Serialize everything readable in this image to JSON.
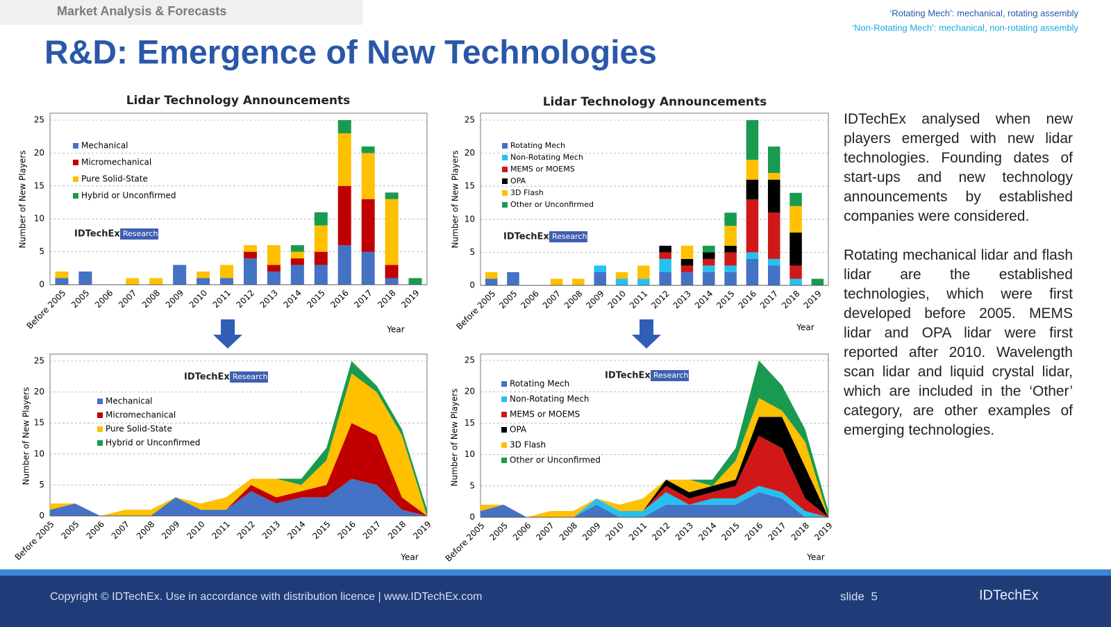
{
  "header": {
    "section": "Market Analysis & Forecasts",
    "title": "R&D: Emergence of New Technologies",
    "notes": [
      "‘Rotating Mech’: mechanical, rotating assembly",
      "‘Non-Rotating Mech’: mechanical, non-rotating assembly"
    ]
  },
  "chart_data": [
    {
      "type": "bar",
      "title": "Lidar Technology Announcements",
      "y_label": "Number of New Players",
      "x_label": "Year",
      "badge": {
        "brand": "IDTechEx",
        "tag": "Research"
      },
      "categories": [
        "Before 2005",
        "2005",
        "2006",
        "2007",
        "2008",
        "2009",
        "2010",
        "2011",
        "2012",
        "2013",
        "2014",
        "2015",
        "2016",
        "2017",
        "2018",
        "2019"
      ],
      "series": [
        {
          "name": "Mechanical",
          "color": "#4472c4",
          "values": [
            1,
            2,
            0,
            0,
            0,
            3,
            1,
            1,
            4,
            2,
            3,
            3,
            6,
            5,
            1,
            0
          ]
        },
        {
          "name": "Micromechanical",
          "color": "#c00000",
          "values": [
            0,
            0,
            0,
            0,
            0,
            0,
            0,
            0,
            1,
            1,
            1,
            2,
            9,
            8,
            2,
            0
          ]
        },
        {
          "name": "Pure Solid-State",
          "color": "#ffc000",
          "values": [
            1,
            0,
            0,
            1,
            1,
            0,
            1,
            2,
            1,
            3,
            1,
            4,
            8,
            7,
            10,
            0
          ]
        },
        {
          "name": "Hybrid or Unconfirmed",
          "color": "#1a9a50",
          "values": [
            0,
            0,
            0,
            0,
            0,
            0,
            0,
            0,
            0,
            0,
            1,
            2,
            2,
            1,
            1,
            1
          ]
        }
      ],
      "ylim": [
        0,
        25
      ],
      "yticks": [
        0,
        5,
        10,
        15,
        20,
        25
      ],
      "grid": true
    },
    {
      "type": "bar",
      "title": "Lidar Technology Announcements",
      "y_label": "Number of New Players",
      "x_label": "Year",
      "badge": {
        "brand": "IDTechEx",
        "tag": "Research"
      },
      "categories": [
        "Before 2005",
        "2005",
        "2006",
        "2007",
        "2008",
        "2009",
        "2010",
        "2011",
        "2012",
        "2013",
        "2014",
        "2015",
        "2016",
        "2017",
        "2018",
        "2019"
      ],
      "series": [
        {
          "name": "Rotating Mech",
          "color": "#4472c4",
          "values": [
            1,
            2,
            0,
            0,
            0,
            2,
            0,
            0,
            2,
            2,
            2,
            2,
            4,
            3,
            0,
            0
          ]
        },
        {
          "name": "Non-Rotating Mech",
          "color": "#26c0f0",
          "values": [
            0,
            0,
            0,
            0,
            0,
            1,
            1,
            1,
            2,
            0,
            1,
            1,
            1,
            1,
            1,
            0
          ]
        },
        {
          "name": "MEMS or MOEMS",
          "color": "#d01818",
          "values": [
            0,
            0,
            0,
            0,
            0,
            0,
            0,
            0,
            1,
            1,
            1,
            2,
            8,
            7,
            2,
            0
          ]
        },
        {
          "name": "OPA",
          "color": "#000000",
          "values": [
            0,
            0,
            0,
            0,
            0,
            0,
            0,
            0,
            1,
            1,
            1,
            1,
            3,
            5,
            5,
            0
          ]
        },
        {
          "name": "3D Flash",
          "color": "#ffc000",
          "values": [
            1,
            0,
            0,
            1,
            1,
            0,
            1,
            2,
            0,
            2,
            0,
            3,
            3,
            1,
            4,
            0
          ]
        },
        {
          "name": "Other or Unconfirmed",
          "color": "#1a9a50",
          "values": [
            0,
            0,
            0,
            0,
            0,
            0,
            0,
            0,
            0,
            0,
            1,
            2,
            6,
            4,
            2,
            1
          ]
        }
      ],
      "ylim": [
        0,
        25
      ],
      "yticks": [
        0,
        5,
        10,
        15,
        20,
        25
      ],
      "grid": true
    },
    {
      "type": "area",
      "y_label": "Number of New Players",
      "x_label": "Year",
      "badge": {
        "brand": "IDTechEx",
        "tag": "Research"
      },
      "categories": [
        "Before 2005",
        "2005",
        "2006",
        "2007",
        "2008",
        "2009",
        "2010",
        "2011",
        "2012",
        "2013",
        "2014",
        "2015",
        "2016",
        "2017",
        "2018",
        "2019"
      ],
      "series": [
        {
          "name": "Mechanical",
          "color": "#4472c4",
          "values": [
            1,
            2,
            0,
            0,
            0,
            3,
            1,
            1,
            4,
            2,
            3,
            3,
            6,
            5,
            1,
            0
          ]
        },
        {
          "name": "Micromechanical",
          "color": "#c00000",
          "values": [
            0,
            0,
            0,
            0,
            0,
            0,
            0,
            0,
            1,
            1,
            1,
            2,
            9,
            8,
            2,
            0
          ]
        },
        {
          "name": "Pure Solid-State",
          "color": "#ffc000",
          "values": [
            1,
            0,
            0,
            1,
            1,
            0,
            1,
            2,
            1,
            3,
            1,
            4,
            8,
            7,
            10,
            0
          ]
        },
        {
          "name": "Hybrid or Unconfirmed",
          "color": "#1a9a50",
          "values": [
            0,
            0,
            0,
            0,
            0,
            0,
            0,
            0,
            0,
            0,
            1,
            2,
            2,
            1,
            1,
            1
          ]
        }
      ],
      "ylim": [
        0,
        25
      ],
      "yticks": [
        0,
        5,
        10,
        15,
        20,
        25
      ],
      "grid": true
    },
    {
      "type": "area",
      "y_label": "Number of New Players",
      "x_label": "Year",
      "badge": {
        "brand": "IDTechEx",
        "tag": "Research"
      },
      "categories": [
        "Before 2005",
        "2005",
        "2006",
        "2007",
        "2008",
        "2009",
        "2010",
        "2011",
        "2012",
        "2013",
        "2014",
        "2015",
        "2016",
        "2017",
        "2018",
        "2019"
      ],
      "series": [
        {
          "name": "Rotating Mech",
          "color": "#4472c4",
          "values": [
            1,
            2,
            0,
            0,
            0,
            2,
            0,
            0,
            2,
            2,
            2,
            2,
            4,
            3,
            0,
            0
          ]
        },
        {
          "name": "Non-Rotating Mech",
          "color": "#26c0f0",
          "values": [
            0,
            0,
            0,
            0,
            0,
            1,
            1,
            1,
            2,
            0,
            1,
            1,
            1,
            1,
            1,
            0
          ]
        },
        {
          "name": "MEMS or MOEMS",
          "color": "#d01818",
          "values": [
            0,
            0,
            0,
            0,
            0,
            0,
            0,
            0,
            1,
            1,
            1,
            2,
            8,
            7,
            2,
            0
          ]
        },
        {
          "name": "OPA",
          "color": "#000000",
          "values": [
            0,
            0,
            0,
            0,
            0,
            0,
            0,
            0,
            1,
            1,
            1,
            1,
            3,
            5,
            5,
            0
          ]
        },
        {
          "name": "3D Flash",
          "color": "#ffc000",
          "values": [
            1,
            0,
            0,
            1,
            1,
            0,
            1,
            2,
            0,
            2,
            0,
            3,
            3,
            1,
            4,
            0
          ]
        },
        {
          "name": "Other or Unconfirmed",
          "color": "#1a9a50",
          "values": [
            0,
            0,
            0,
            0,
            0,
            0,
            0,
            0,
            0,
            0,
            1,
            2,
            6,
            4,
            2,
            1
          ]
        }
      ],
      "ylim": [
        0,
        25
      ],
      "yticks": [
        0,
        5,
        10,
        15,
        20,
        25
      ],
      "grid": true
    }
  ],
  "body": {
    "paragraphs": [
      "IDTechEx analysed when new players emerged with new lidar technologies. Founding dates of start-ups and new technology announcements by established companies were considered.",
      "Rotating mechanical lidar and flash lidar are the established technologies, which were first developed before 2005. MEMS lidar and OPA lidar were first reported after 2010. Wavelength scan lidar and liquid crystal lidar, which are included in the ‘Other’ category, are other examples of emerging technologies."
    ]
  },
  "footer": {
    "copyright": "Copyright © IDTechEx. Use in accordance with distribution licence  |  www.IDTechEx.com",
    "slide": "slide  5",
    "logo": "IDTechEx"
  }
}
